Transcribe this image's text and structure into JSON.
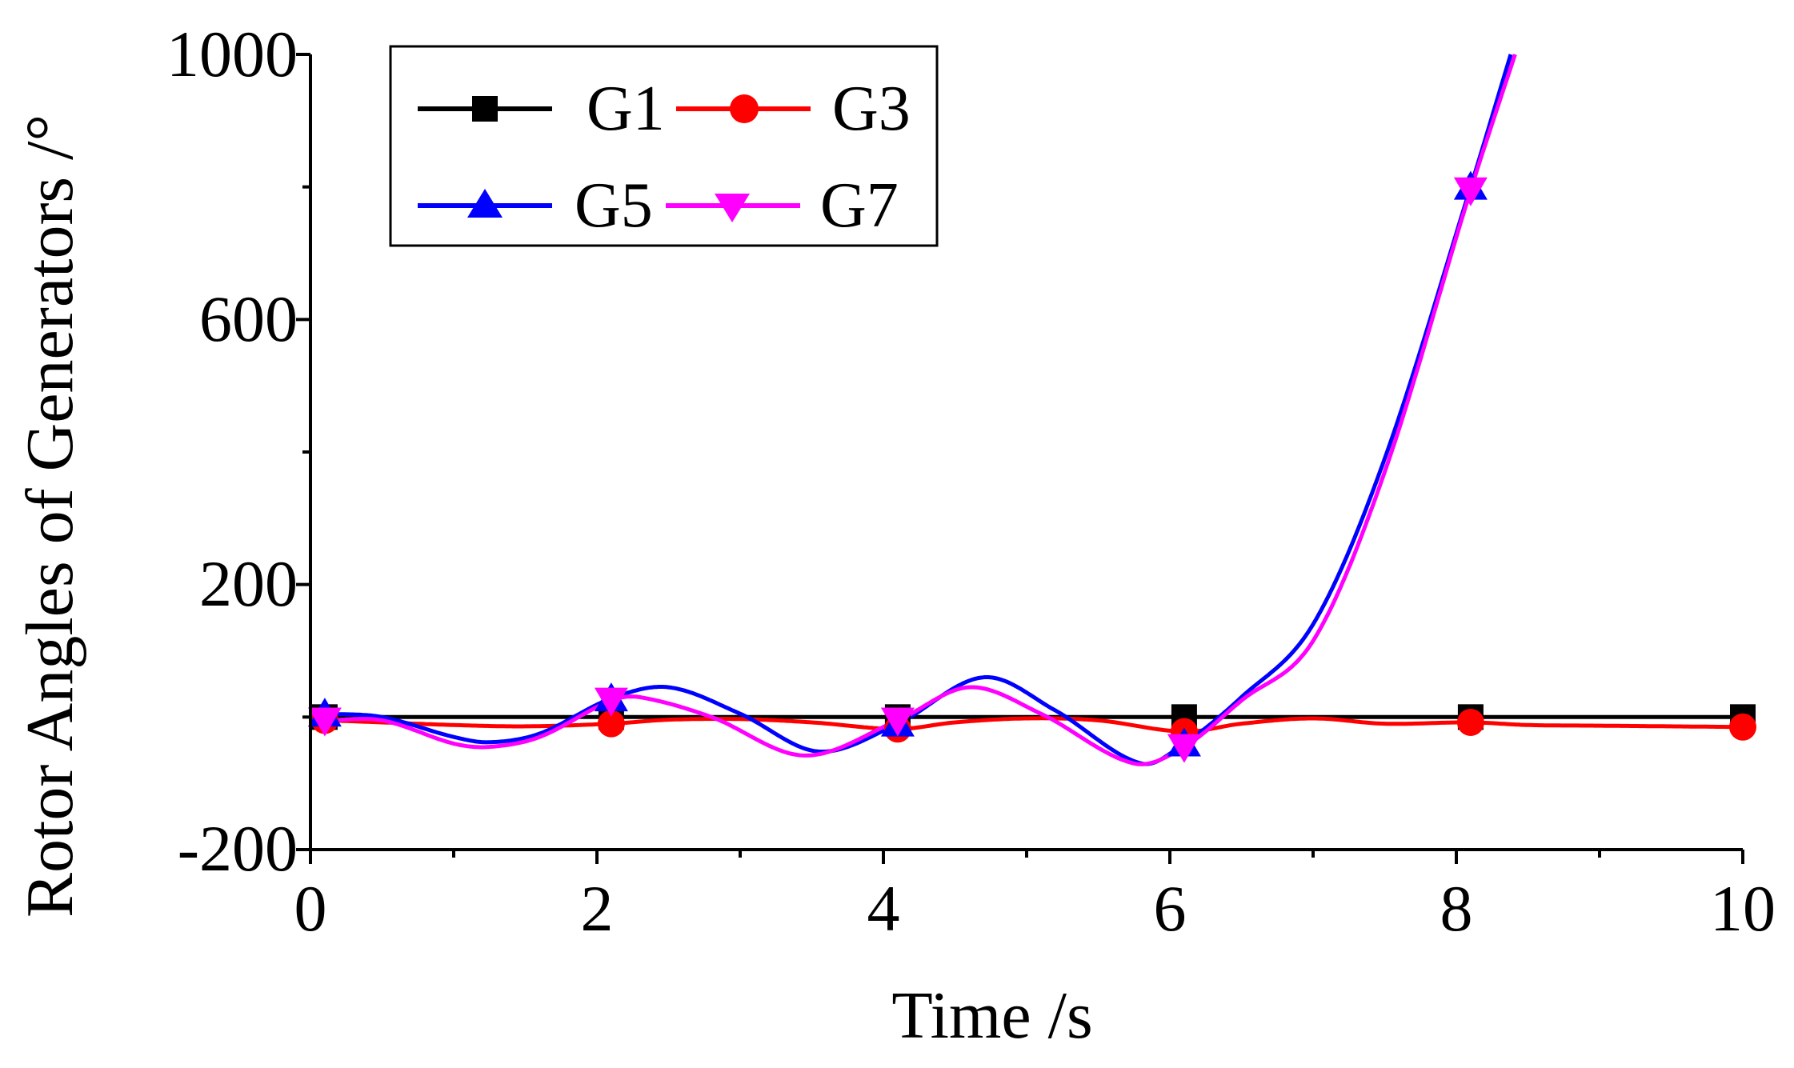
{
  "chart_data": {
    "type": "line",
    "title": "",
    "xlabel": "Time /s",
    "ylabel": "Rotor Angles of Generators /°",
    "xlim": [
      0,
      10
    ],
    "ylim": [
      -200,
      1000
    ],
    "xticks": [
      0,
      2,
      4,
      6,
      8,
      10
    ],
    "xtick_labels": [
      "0",
      "2",
      "4",
      "6",
      "8",
      "10"
    ],
    "yticks": [
      -200,
      200,
      600,
      1000
    ],
    "ytick_labels": [
      "-200",
      "200",
      "600",
      "1000"
    ],
    "grid": false,
    "legend_position": "top-left",
    "series": [
      {
        "name": "G1",
        "color": "#000000",
        "marker": "square",
        "x": [
          0,
          0.1,
          1,
          2,
          2.1,
          3,
          4,
          4.1,
          5,
          6,
          6.1,
          7,
          8,
          8.1,
          9,
          10
        ],
        "y": [
          0,
          0,
          0,
          0,
          0,
          0,
          0,
          0,
          0,
          0,
          0,
          0,
          0,
          0,
          0,
          0
        ],
        "marker_x": [
          0.1,
          2.1,
          4.1,
          6.1,
          8.1,
          10
        ]
      },
      {
        "name": "G3",
        "color": "#ff0000",
        "marker": "circle",
        "x": [
          0,
          0.1,
          0.5,
          1.0,
          1.5,
          2.1,
          2.5,
          3.0,
          3.5,
          4.1,
          4.5,
          5.0,
          5.5,
          6.1,
          6.5,
          7.0,
          7.5,
          8.1,
          8.5,
          9.0,
          9.5,
          10
        ],
        "y": [
          -5,
          -5,
          -8,
          -12,
          -14,
          -10,
          -4,
          -3,
          -8,
          -18,
          -8,
          -2,
          -5,
          -22,
          -10,
          -2,
          -10,
          -8,
          -12,
          -13,
          -14,
          -15
        ],
        "marker_x": [
          0.1,
          2.1,
          4.1,
          6.1,
          8.1,
          10
        ]
      },
      {
        "name": "G5",
        "color": "#0000ff",
        "marker": "triangle-up",
        "x": [
          0,
          0.1,
          0.5,
          1.0,
          1.25,
          1.6,
          2.1,
          2.5,
          3.0,
          3.55,
          4.1,
          4.7,
          5.2,
          5.8,
          6.1,
          6.5,
          7.0,
          7.5,
          8.1,
          8.38
        ],
        "y": [
          5,
          5,
          0,
          -30,
          -38,
          -25,
          28,
          45,
          5,
          -52,
          -10,
          60,
          10,
          -70,
          -40,
          30,
          140,
          390,
          800,
          1000
        ],
        "marker_x": [
          0.1,
          2.1,
          4.1,
          6.1,
          8.1
        ]
      },
      {
        "name": "G7",
        "color": "#ff00ff",
        "marker": "triangle-down",
        "x": [
          0,
          0.1,
          0.5,
          1.0,
          1.25,
          1.6,
          2.1,
          2.3,
          2.8,
          3.45,
          4.1,
          4.6,
          5.1,
          5.75,
          6.1,
          6.5,
          7.0,
          7.5,
          8.1,
          8.41
        ],
        "y": [
          -5,
          -5,
          -5,
          -40,
          -45,
          -30,
          25,
          30,
          0,
          -58,
          -5,
          45,
          5,
          -70,
          -45,
          25,
          115,
          370,
          795,
          1000
        ],
        "marker_x": [
          0.1,
          2.1,
          4.1,
          6.1,
          8.1
        ]
      }
    ]
  }
}
